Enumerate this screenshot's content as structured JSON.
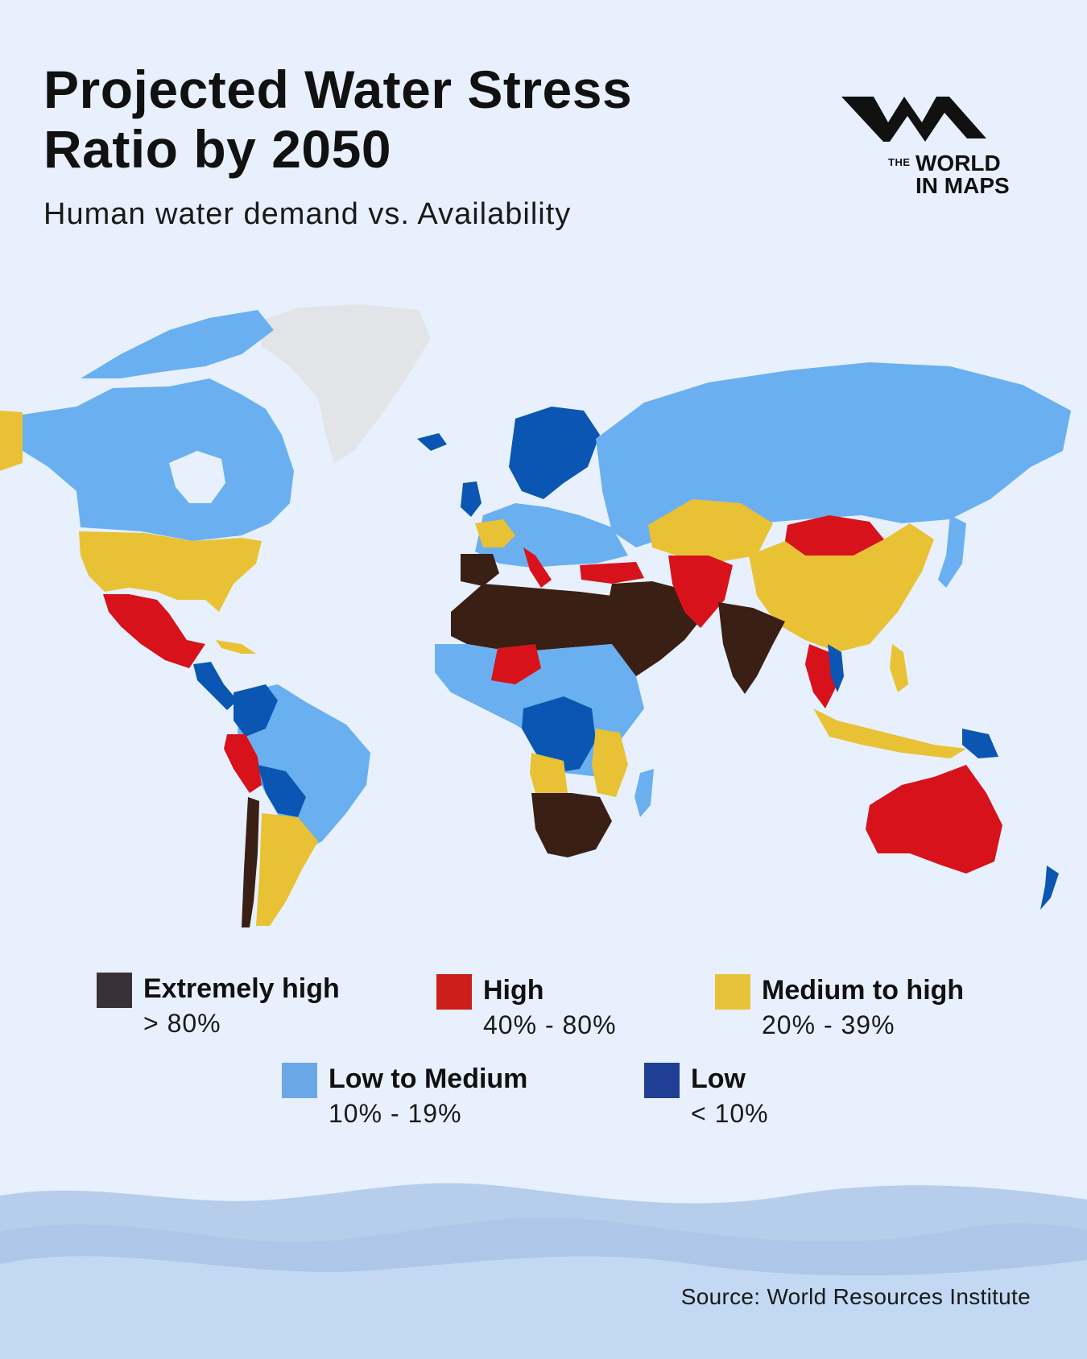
{
  "title": "Projected Water Stress Ratio by 2050",
  "subtitle": "Human water demand vs. Availability",
  "logo": {
    "the": "THE",
    "line1": "WORLD",
    "line2": "IN MAPS"
  },
  "legend": [
    {
      "label": "Extremely high",
      "range": "> 80%",
      "color": "#3a3137"
    },
    {
      "label": "High",
      "range": "40% - 80%",
      "color": "#cc1f1a"
    },
    {
      "label": "Medium to high",
      "range": "20% - 39%",
      "color": "#e9c23b"
    },
    {
      "label": "Low to Medium",
      "range": "10% - 19%",
      "color": "#6aa8e8"
    },
    {
      "label": "Low",
      "range": "< 10%",
      "color": "#1e3f94"
    }
  ],
  "map_colors": {
    "extremely_high_fill": "#3a1f14",
    "high": "#d8121a",
    "medium_to_high": "#e8c234",
    "low_to_medium": "#6ab0f0",
    "low": "#0b56b3",
    "no_data": "#e2e4e8"
  },
  "source": "Source: World Resources Institute"
}
